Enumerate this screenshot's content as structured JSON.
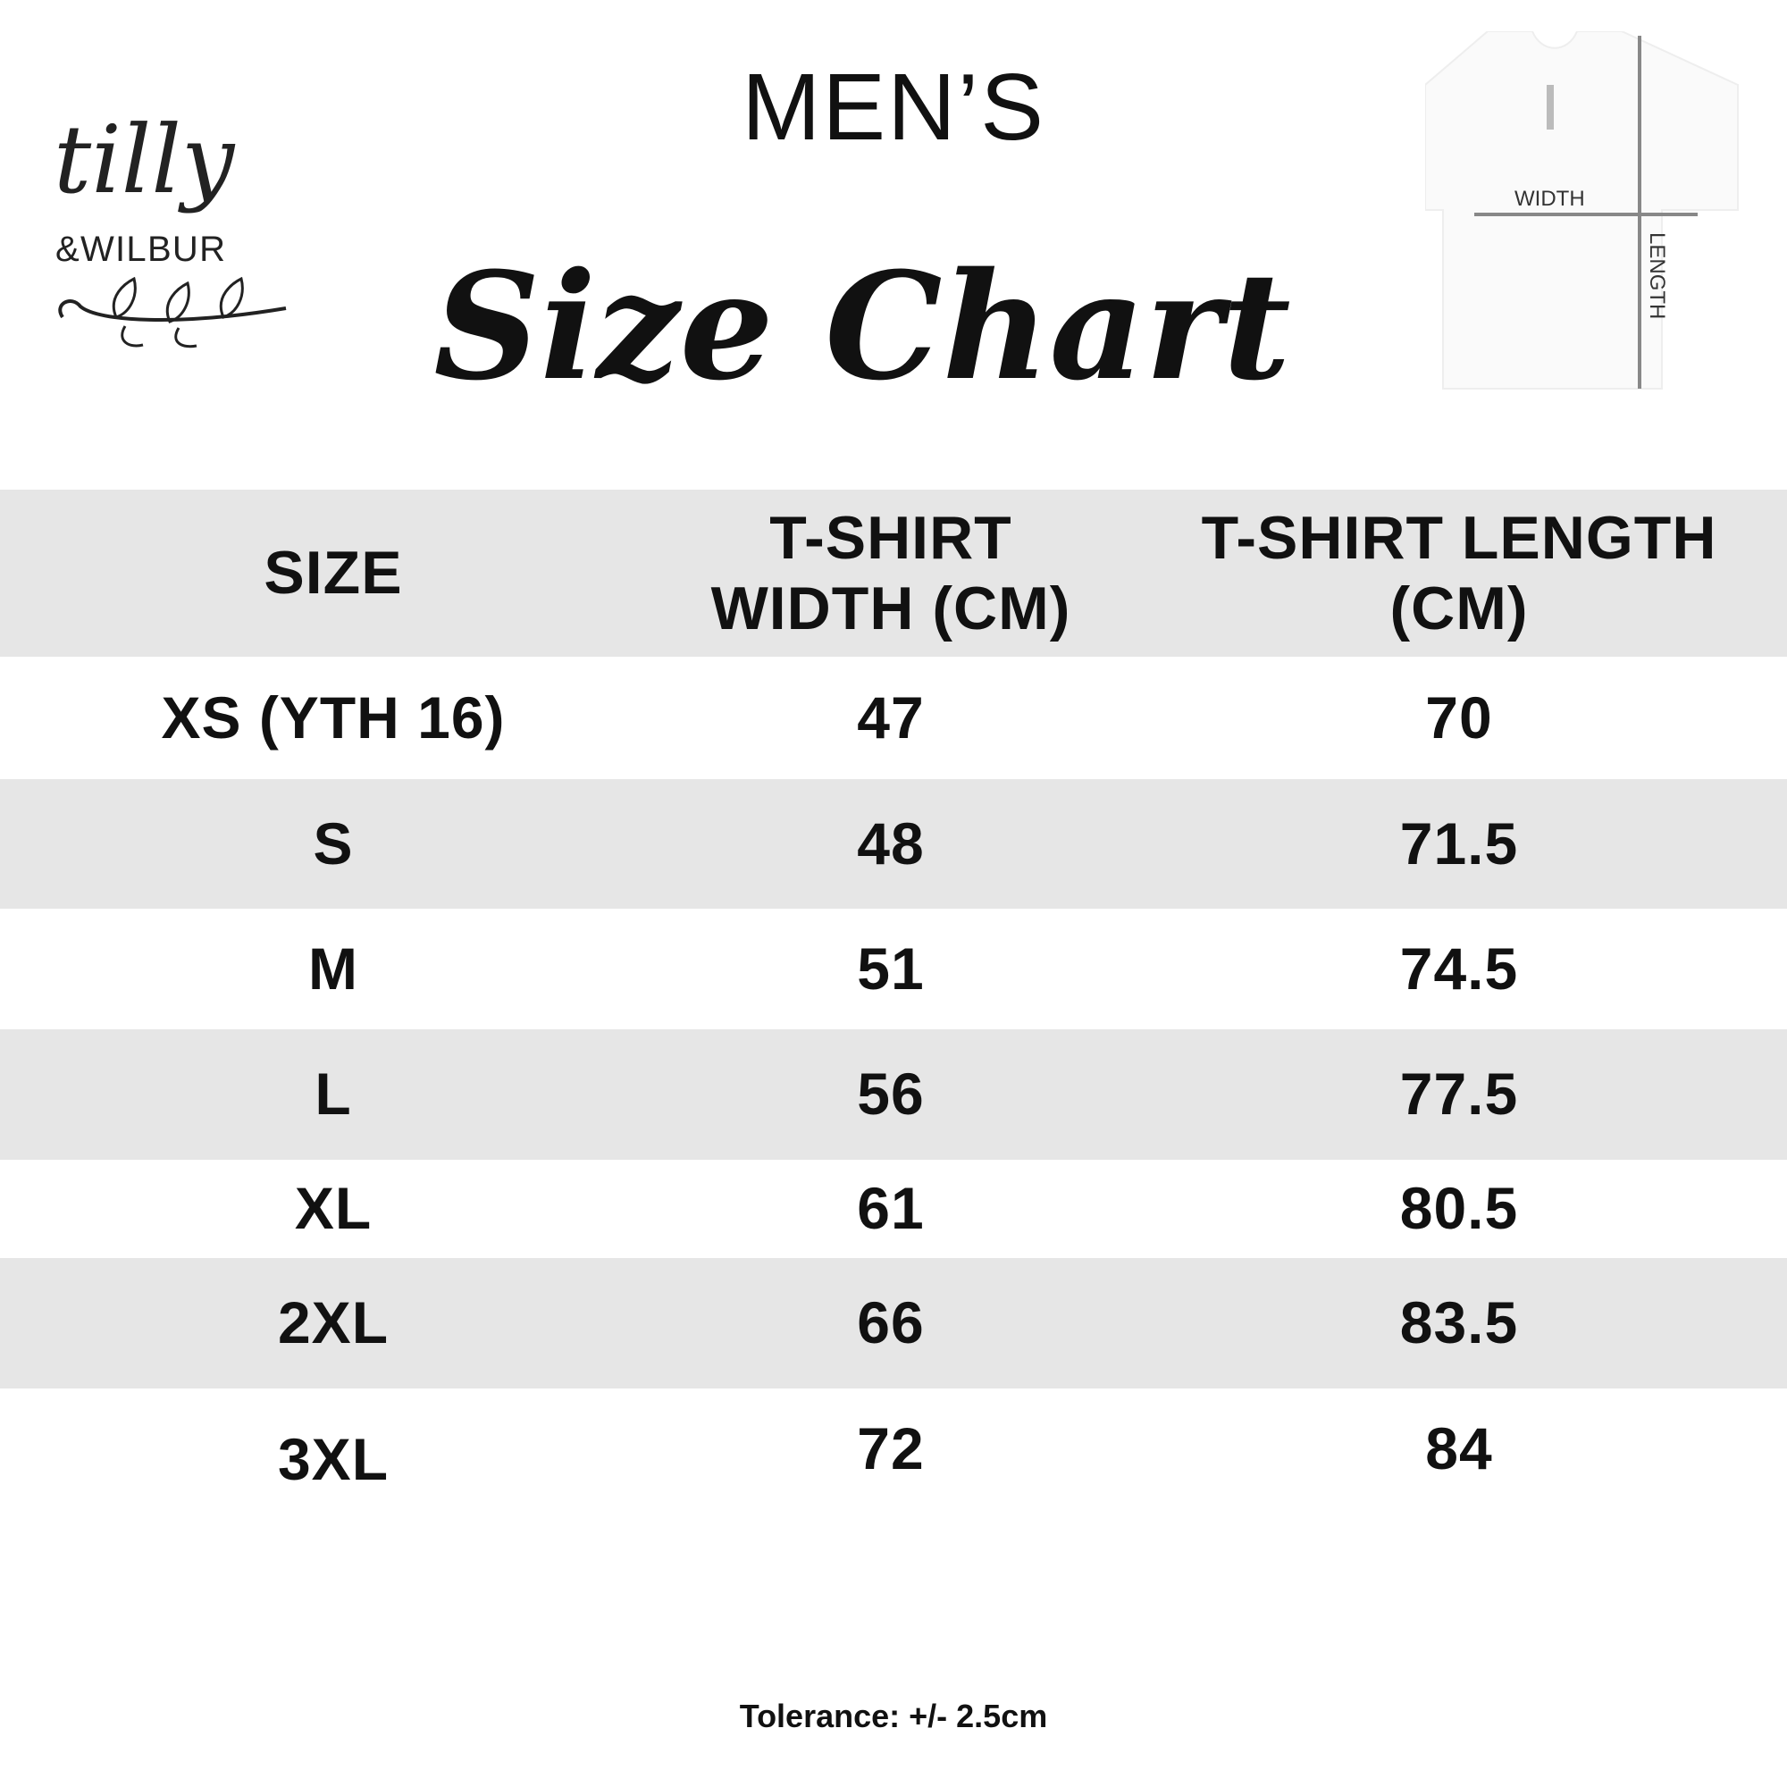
{
  "header": {
    "mens": "MEN’S",
    "title": "Size Chart",
    "logo_text": "tilly & WILBUR",
    "shirt_labels": {
      "width": "WIDTH",
      "length": "LENGTH"
    }
  },
  "table": {
    "columns": [
      "SIZE",
      "T-SHIRT WIDTH (CM)",
      "T-SHIRT LENGTH (CM)"
    ],
    "rows": [
      {
        "size": "XS (YTH 16)",
        "width": "47",
        "length": "70"
      },
      {
        "size": "S",
        "width": "48",
        "length": "71.5"
      },
      {
        "size": "M",
        "width": "51",
        "length": "74.5"
      },
      {
        "size": "L",
        "width": "56",
        "length": "77.5"
      },
      {
        "size": "XL",
        "width": "61",
        "length": "80.5"
      },
      {
        "size": "2XL",
        "width": "66",
        "length": "83.5"
      },
      {
        "size": "3XL",
        "width": "72",
        "length": "84"
      }
    ]
  },
  "footer": {
    "tolerance": "Tolerance: +/- 2.5cm"
  },
  "colors": {
    "stripe": "#e6e6e6",
    "text": "#111111"
  }
}
